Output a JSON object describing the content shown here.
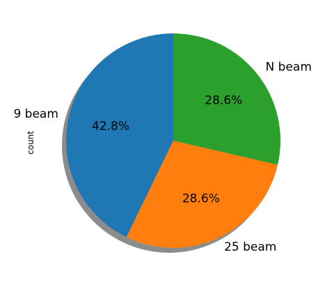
{
  "chart_data": {
    "type": "pie",
    "title": "",
    "ylabel": "count",
    "start_angle_deg": 90,
    "counterclock": true,
    "shadow": true,
    "slices": [
      {
        "label": "9 beam",
        "value": 42.8,
        "pct_text": "42.8%",
        "color": "#1f77b4"
      },
      {
        "label": "25 beam",
        "value": 28.6,
        "pct_text": "28.6%",
        "color": "#ff7f0e"
      },
      {
        "label": "N beam",
        "value": 28.6,
        "pct_text": "28.6%",
        "color": "#2ca02c"
      }
    ]
  }
}
